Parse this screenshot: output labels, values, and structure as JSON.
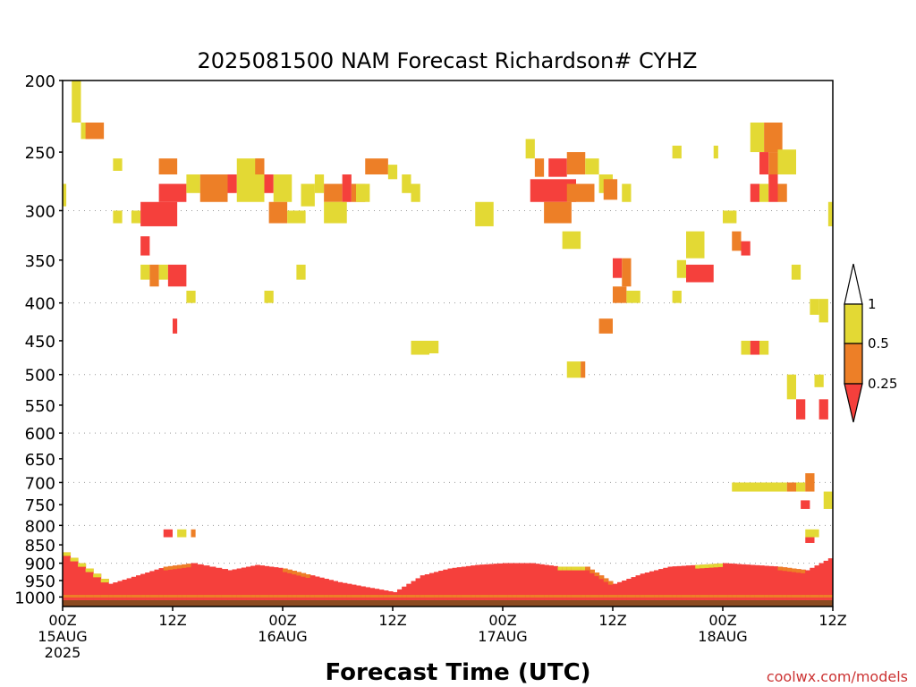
{
  "chart_data": {
    "type": "heatmap",
    "title": "2025081500 NAM Forecast Richardson# CYHZ",
    "xlabel": "Forecast Time (UTC)",
    "ylabel": "",
    "credit": "coolwx.com/models",
    "x_range_hours": [
      0,
      84
    ],
    "x_ticks": [
      {
        "h": 0,
        "lines": [
          "00Z",
          "15AUG",
          "2025"
        ]
      },
      {
        "h": 12,
        "lines": [
          "12Z"
        ]
      },
      {
        "h": 24,
        "lines": [
          "00Z",
          "16AUG"
        ]
      },
      {
        "h": 36,
        "lines": [
          "12Z"
        ]
      },
      {
        "h": 48,
        "lines": [
          "00Z",
          "17AUG"
        ]
      },
      {
        "h": 60,
        "lines": [
          "12Z"
        ]
      },
      {
        "h": 72,
        "lines": [
          "00Z",
          "18AUG"
        ]
      },
      {
        "h": 84,
        "lines": [
          "12Z"
        ]
      }
    ],
    "y_scale": "log-pressure",
    "y_range_hpa": [
      1030,
      200
    ],
    "y_ticks": [
      "200",
      "250",
      "300",
      "350",
      "400",
      "450",
      "500",
      "550",
      "600",
      "650",
      "700",
      "750",
      "800",
      "850",
      "900",
      "950",
      "1000"
    ],
    "y_gridlines_hpa": [
      300,
      400,
      500,
      600,
      700,
      800,
      900
    ],
    "legend": {
      "placement": "right",
      "labels": [
        "1",
        "0.5",
        "0.25"
      ],
      "bins": [
        {
          "range": "0.5 to 1",
          "color": "#e3d934"
        },
        {
          "range": "0.25 to 0.5",
          "color": "#ed7f27"
        },
        {
          "range": "< 0.25",
          "color": "#f5403c"
        }
      ]
    },
    "colors": {
      "high": "#e3d934",
      "mid": "#ed7f27",
      "low": "#f5403c",
      "ground": "#8b4a21"
    },
    "ground_hpa": 1010,
    "cells": [
      {
        "h": [
          1,
          2
        ],
        "p": [
          200,
          228
        ],
        "c": "y"
      },
      {
        "h": [
          2,
          3
        ],
        "p": [
          228,
          240
        ],
        "c": "y"
      },
      {
        "h": [
          2.5,
          4.5
        ],
        "p": [
          228,
          240
        ],
        "c": "o"
      },
      {
        "h": [
          5.5,
          6.5
        ],
        "p": [
          255,
          265
        ],
        "c": "y"
      },
      {
        "h": [
          0,
          0.4
        ],
        "p": [
          276,
          296
        ],
        "c": "y"
      },
      {
        "h": [
          5.5,
          6.5
        ],
        "p": [
          300,
          312
        ],
        "c": "y"
      },
      {
        "h": [
          7.5,
          8.5
        ],
        "p": [
          300,
          312
        ],
        "c": "y"
      },
      {
        "h": [
          8.5,
          12.5
        ],
        "p": [
          292,
          315
        ],
        "c": "r"
      },
      {
        "h": [
          8.5,
          9.5
        ],
        "p": [
          325,
          345
        ],
        "c": "r"
      },
      {
        "h": [
          10.5,
          12.5
        ],
        "p": [
          255,
          268
        ],
        "c": "o"
      },
      {
        "h": [
          10.5,
          13.5
        ],
        "p": [
          276,
          292
        ],
        "c": "r"
      },
      {
        "h": [
          13.5,
          15
        ],
        "p": [
          268,
          284
        ],
        "c": "y"
      },
      {
        "h": [
          15,
          18
        ],
        "p": [
          268,
          292
        ],
        "c": "o"
      },
      {
        "h": [
          18,
          19
        ],
        "p": [
          268,
          284
        ],
        "c": "r"
      },
      {
        "h": [
          19,
          22
        ],
        "p": [
          255,
          292
        ],
        "c": "y"
      },
      {
        "h": [
          21,
          22
        ],
        "p": [
          255,
          268
        ],
        "c": "o"
      },
      {
        "h": [
          22,
          23
        ],
        "p": [
          268,
          284
        ],
        "c": "r"
      },
      {
        "h": [
          23,
          25
        ],
        "p": [
          268,
          292
        ],
        "c": "y"
      },
      {
        "h": [
          22.5,
          24.5
        ],
        "p": [
          292,
          312
        ],
        "c": "o"
      },
      {
        "h": [
          24.5,
          26.5
        ],
        "p": [
          300,
          312
        ],
        "c": "y"
      },
      {
        "h": [
          26,
          27.5
        ],
        "p": [
          276,
          296
        ],
        "c": "y"
      },
      {
        "h": [
          27.5,
          28.5
        ],
        "p": [
          268,
          284
        ],
        "c": "y"
      },
      {
        "h": [
          28.5,
          30.5
        ],
        "p": [
          276,
          292
        ],
        "c": "o"
      },
      {
        "h": [
          30.5,
          31.5
        ],
        "p": [
          268,
          292
        ],
        "c": "r"
      },
      {
        "h": [
          31.5,
          33
        ],
        "p": [
          276,
          292
        ],
        "c": "o"
      },
      {
        "h": [
          28.5,
          31
        ],
        "p": [
          292,
          312
        ],
        "c": "y"
      },
      {
        "h": [
          32,
          33.5
        ],
        "p": [
          276,
          292
        ],
        "c": "y"
      },
      {
        "h": [
          33,
          35.5
        ],
        "p": [
          255,
          268
        ],
        "c": "o"
      },
      {
        "h": [
          35.5,
          36.5
        ],
        "p": [
          260,
          272
        ],
        "c": "y"
      },
      {
        "h": [
          37,
          38
        ],
        "p": [
          268,
          284
        ],
        "c": "y"
      },
      {
        "h": [
          38,
          39
        ],
        "p": [
          276,
          292
        ],
        "c": "y"
      },
      {
        "h": [
          8.5,
          9.5
        ],
        "p": [
          355,
          372
        ],
        "c": "y"
      },
      {
        "h": [
          9.5,
          10.5
        ],
        "p": [
          355,
          380
        ],
        "c": "o"
      },
      {
        "h": [
          10.5,
          11.5
        ],
        "p": [
          355,
          372
        ],
        "c": "y"
      },
      {
        "h": [
          11.5,
          13.5
        ],
        "p": [
          355,
          380
        ],
        "c": "r"
      },
      {
        "h": [
          13.5,
          14.5
        ],
        "p": [
          385,
          400
        ],
        "c": "y"
      },
      {
        "h": [
          12,
          12.5
        ],
        "p": [
          420,
          440
        ],
        "c": "r"
      },
      {
        "h": [
          22,
          23
        ],
        "p": [
          385,
          400
        ],
        "c": "y"
      },
      {
        "h": [
          25.5,
          26.5
        ],
        "p": [
          355,
          372
        ],
        "c": "y"
      },
      {
        "h": [
          45,
          47
        ],
        "p": [
          292,
          315
        ],
        "c": "y"
      },
      {
        "h": [
          50.5,
          51.5
        ],
        "p": [
          240,
          255
        ],
        "c": "y"
      },
      {
        "h": [
          51.5,
          52.5
        ],
        "p": [
          255,
          270
        ],
        "c": "o"
      },
      {
        "h": [
          53,
          55
        ],
        "p": [
          255,
          270
        ],
        "c": "r"
      },
      {
        "h": [
          55,
          57
        ],
        "p": [
          250,
          268
        ],
        "c": "o"
      },
      {
        "h": [
          57,
          58.5
        ],
        "p": [
          255,
          268
        ],
        "c": "y"
      },
      {
        "h": [
          51,
          56
        ],
        "p": [
          272,
          292
        ],
        "c": "r"
      },
      {
        "h": [
          55,
          58
        ],
        "p": [
          276,
          292
        ],
        "c": "o"
      },
      {
        "h": [
          52.5,
          55.5
        ],
        "p": [
          292,
          312
        ],
        "c": "o"
      },
      {
        "h": [
          54.5,
          56.5
        ],
        "p": [
          320,
          338
        ],
        "c": "y"
      },
      {
        "h": [
          58.5,
          60
        ],
        "p": [
          268,
          284
        ],
        "c": "y"
      },
      {
        "h": [
          59,
          60.5
        ],
        "p": [
          272,
          290
        ],
        "c": "o"
      },
      {
        "h": [
          61,
          62
        ],
        "p": [
          276,
          292
        ],
        "c": "y"
      },
      {
        "h": [
          58.5,
          60
        ],
        "p": [
          420,
          440
        ],
        "c": "o"
      },
      {
        "h": [
          60,
          61
        ],
        "p": [
          348,
          370
        ],
        "c": "r"
      },
      {
        "h": [
          61,
          62
        ],
        "p": [
          348,
          380
        ],
        "c": "o"
      },
      {
        "h": [
          60,
          61.5
        ],
        "p": [
          380,
          400
        ],
        "c": "o"
      },
      {
        "h": [
          61.5,
          63
        ],
        "p": [
          385,
          400
        ],
        "c": "y"
      },
      {
        "h": [
          55,
          56.5
        ],
        "p": [
          480,
          505
        ],
        "c": "y"
      },
      {
        "h": [
          56.5,
          57
        ],
        "p": [
          480,
          505
        ],
        "c": "o"
      },
      {
        "h": [
          38,
          40
        ],
        "p": [
          450,
          470
        ],
        "c": "y"
      },
      {
        "h": [
          40,
          41
        ],
        "p": [
          450,
          468
        ],
        "c": "y"
      },
      {
        "h": [
          67,
          68
        ],
        "p": [
          350,
          370
        ],
        "c": "y"
      },
      {
        "h": [
          68,
          71
        ],
        "p": [
          355,
          375
        ],
        "c": "r"
      },
      {
        "h": [
          66.5,
          67.5
        ],
        "p": [
          385,
          400
        ],
        "c": "y"
      },
      {
        "h": [
          68,
          70
        ],
        "p": [
          320,
          348
        ],
        "c": "y"
      },
      {
        "h": [
          72,
          73.5
        ],
        "p": [
          300,
          312
        ],
        "c": "y"
      },
      {
        "h": [
          73,
          74
        ],
        "p": [
          320,
          340
        ],
        "c": "o"
      },
      {
        "h": [
          74,
          75
        ],
        "p": [
          330,
          345
        ],
        "c": "r"
      },
      {
        "h": [
          66.5,
          67.5
        ],
        "p": [
          245,
          255
        ],
        "c": "y"
      },
      {
        "h": [
          71,
          71.5
        ],
        "p": [
          245,
          255
        ],
        "c": "y"
      },
      {
        "h": [
          75,
          76.5
        ],
        "p": [
          228,
          250
        ],
        "c": "y"
      },
      {
        "h": [
          76.5,
          78.5
        ],
        "p": [
          228,
          250
        ],
        "c": "o"
      },
      {
        "h": [
          76,
          77
        ],
        "p": [
          250,
          268
        ],
        "c": "r"
      },
      {
        "h": [
          77,
          78
        ],
        "p": [
          250,
          272
        ],
        "c": "o"
      },
      {
        "h": [
          78,
          80
        ],
        "p": [
          248,
          268
        ],
        "c": "y"
      },
      {
        "h": [
          75,
          76
        ],
        "p": [
          276,
          292
        ],
        "c": "r"
      },
      {
        "h": [
          76,
          77
        ],
        "p": [
          276,
          292
        ],
        "c": "y"
      },
      {
        "h": [
          77,
          78
        ],
        "p": [
          268,
          292
        ],
        "c": "r"
      },
      {
        "h": [
          78,
          79
        ],
        "p": [
          276,
          292
        ],
        "c": "o"
      },
      {
        "h": [
          74,
          75
        ],
        "p": [
          450,
          470
        ],
        "c": "y"
      },
      {
        "h": [
          75,
          76
        ],
        "p": [
          450,
          470
        ],
        "c": "r"
      },
      {
        "h": [
          76,
          77
        ],
        "p": [
          450,
          470
        ],
        "c": "y"
      },
      {
        "h": [
          79.5,
          80.5
        ],
        "p": [
          355,
          372
        ],
        "c": "y"
      },
      {
        "h": [
          81.5,
          82.5
        ],
        "p": [
          395,
          415
        ],
        "c": "y"
      },
      {
        "h": [
          82.5,
          83.5
        ],
        "p": [
          395,
          425
        ],
        "c": "y"
      },
      {
        "h": [
          83.5,
          84
        ],
        "p": [
          292,
          315
        ],
        "c": "y"
      },
      {
        "h": [
          79,
          80
        ],
        "p": [
          500,
          540
        ],
        "c": "y"
      },
      {
        "h": [
          80,
          81
        ],
        "p": [
          540,
          575
        ],
        "c": "r"
      },
      {
        "h": [
          82,
          83
        ],
        "p": [
          500,
          520
        ],
        "c": "y"
      },
      {
        "h": [
          82.5,
          83.5
        ],
        "p": [
          540,
          575
        ],
        "c": "r"
      },
      {
        "h": [
          80,
          81
        ],
        "p": [
          700,
          720
        ],
        "c": "y"
      },
      {
        "h": [
          81,
          82
        ],
        "p": [
          680,
          720
        ],
        "c": "o"
      },
      {
        "h": [
          83,
          84
        ],
        "p": [
          720,
          760
        ],
        "c": "y"
      },
      {
        "h": [
          73,
          79
        ],
        "p": [
          700,
          720
        ],
        "c": "y"
      },
      {
        "h": [
          79,
          80
        ],
        "p": [
          700,
          720
        ],
        "c": "o"
      },
      {
        "h": [
          80.5,
          81.5
        ],
        "p": [
          740,
          760
        ],
        "c": "r"
      },
      {
        "h": [
          11,
          12
        ],
        "p": [
          810,
          830
        ],
        "c": "r"
      },
      {
        "h": [
          12.5,
          13.5
        ],
        "p": [
          810,
          830
        ],
        "c": "y"
      },
      {
        "h": [
          14,
          14.5
        ],
        "p": [
          810,
          830
        ],
        "c": "o"
      },
      {
        "h": [
          81,
          82.5
        ],
        "p": [
          810,
          830
        ],
        "c": "y"
      },
      {
        "h": [
          81,
          82
        ],
        "p": [
          830,
          845
        ],
        "c": "r"
      }
    ],
    "boundary_layer": [
      {
        "h": 0,
        "top": 870,
        "c": "y"
      },
      {
        "h": 5,
        "top": 960,
        "c": "r"
      },
      {
        "h": 8,
        "top": 935,
        "c": "r"
      },
      {
        "h": 11,
        "top": 910,
        "c": "o"
      },
      {
        "h": 14,
        "top": 900,
        "c": "r"
      },
      {
        "h": 18,
        "top": 920,
        "c": "r"
      },
      {
        "h": 21,
        "top": 905,
        "c": "r"
      },
      {
        "h": 24,
        "top": 915,
        "c": "o"
      },
      {
        "h": 27,
        "top": 935,
        "c": "r"
      },
      {
        "h": 30,
        "top": 955,
        "c": "r"
      },
      {
        "h": 33,
        "top": 970,
        "c": "r"
      },
      {
        "h": 36,
        "top": 985,
        "c": "r"
      },
      {
        "h": 39,
        "top": 935,
        "c": "r"
      },
      {
        "h": 42,
        "top": 915,
        "c": "r"
      },
      {
        "h": 45,
        "top": 905,
        "c": "r"
      },
      {
        "h": 48,
        "top": 900,
        "c": "r"
      },
      {
        "h": 51,
        "top": 900,
        "c": "r"
      },
      {
        "h": 54,
        "top": 910,
        "c": "y"
      },
      {
        "h": 57,
        "top": 910,
        "c": "o"
      },
      {
        "h": 60,
        "top": 960,
        "c": "r"
      },
      {
        "h": 63,
        "top": 930,
        "c": "r"
      },
      {
        "h": 66,
        "top": 910,
        "c": "r"
      },
      {
        "h": 69,
        "top": 905,
        "c": "y"
      },
      {
        "h": 72,
        "top": 900,
        "c": "r"
      },
      {
        "h": 75,
        "top": 905,
        "c": "r"
      },
      {
        "h": 78,
        "top": 910,
        "c": "o"
      },
      {
        "h": 81,
        "top": 920,
        "c": "r"
      },
      {
        "h": 84,
        "top": 880,
        "c": "o"
      }
    ]
  }
}
